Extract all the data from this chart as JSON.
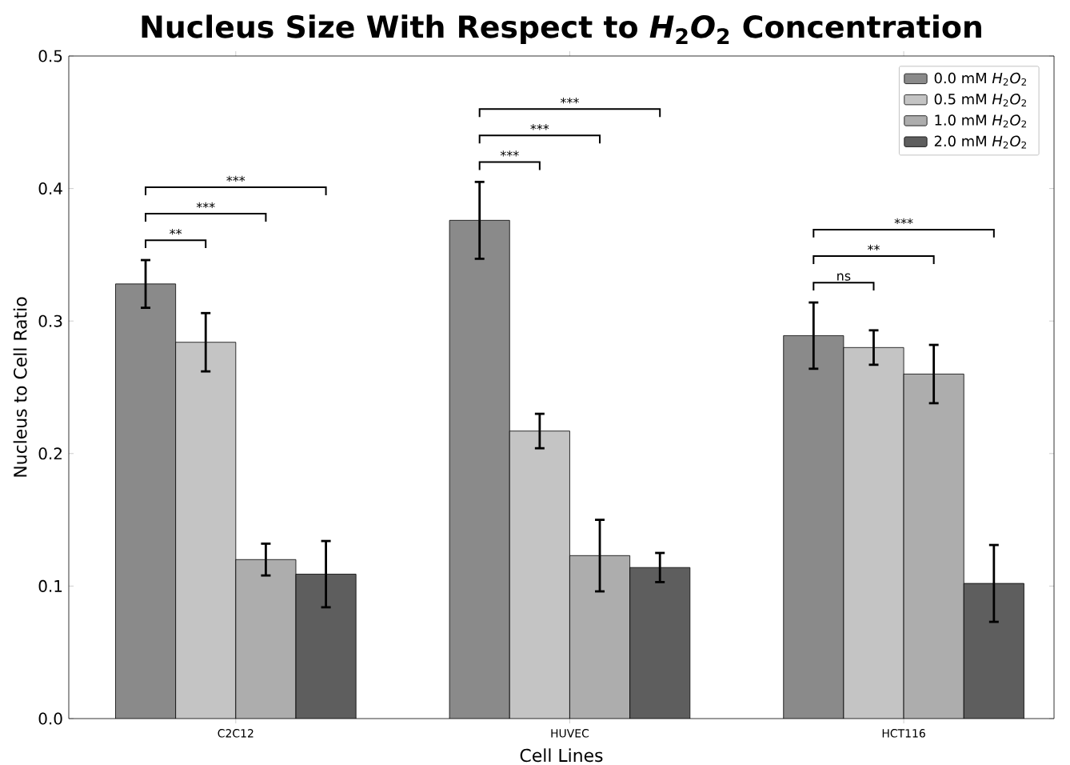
{
  "chart_data": {
    "type": "bar",
    "title": "Nucleus Size With Respect to *H*$_{2}$*O*$_{2}$ Concentration",
    "xlabel": "Cell Lines",
    "ylabel": "Nucleus to Cell Ratio",
    "categories": [
      "C2C12",
      "HUVEC",
      "HCT116"
    ],
    "series": [
      {
        "name": "0.0 mM *H*$_{2}$*O*$_{2}$",
        "color": "#8a8a8a",
        "values": [
          0.328,
          0.376,
          0.289
        ],
        "errors": [
          0.018,
          0.029,
          0.025
        ]
      },
      {
        "name": "0.5 mM *H*$_{2}$*O*$_{2}$",
        "color": "#c4c4c4",
        "values": [
          0.284,
          0.217,
          0.28
        ],
        "errors": [
          0.022,
          0.013,
          0.013
        ]
      },
      {
        "name": "1.0 mM *H*$_{2}$*O*$_{2}$",
        "color": "#adadad",
        "values": [
          0.12,
          0.123,
          0.26
        ],
        "errors": [
          0.012,
          0.027,
          0.022
        ]
      },
      {
        "name": "2.0 mM *H*$_{2}$*O*$_{2}$",
        "color": "#5e5e5e",
        "values": [
          0.109,
          0.114,
          0.102
        ],
        "errors": [
          0.025,
          0.011,
          0.029
        ]
      }
    ],
    "annotations": [
      "**",
      "***",
      "***",
      "***",
      "***",
      "***",
      "ns",
      "**",
      "***"
    ],
    "ylim": [
      0,
      0.5
    ],
    "yticks": [
      {
        "value": 0,
        "label": "0.0"
      },
      0.1,
      0.2,
      0.3,
      0.4,
      0.5
    ],
    "legend": "top right",
    "grid": false
  }
}
